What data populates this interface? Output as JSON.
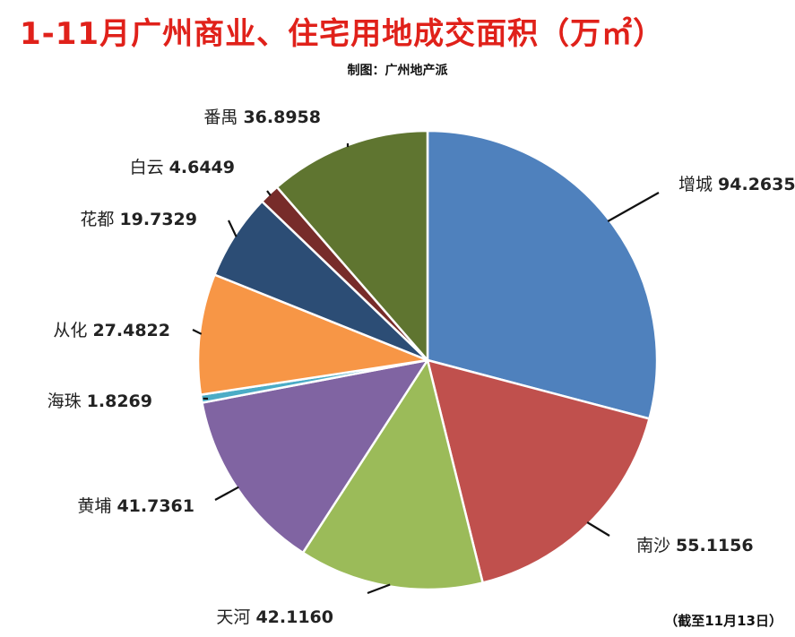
{
  "header": {
    "title": "1-11月广州商业、住宅用地成交面积（万㎡）",
    "credit": "制图：广州地产派"
  },
  "footer": {
    "note": "（截至11月13日）"
  },
  "chart_data": {
    "type": "pie",
    "title": "1-11月广州商业、住宅用地成交面积（万㎡）",
    "unit": "万㎡",
    "slices": [
      {
        "name": "增城",
        "value": 94.2635,
        "color": "#4f81bd"
      },
      {
        "name": "南沙",
        "value": 55.1156,
        "color": "#c0504d"
      },
      {
        "name": "天河",
        "value": 42.116,
        "color": "#9bbb59"
      },
      {
        "name": "黄埔",
        "value": 41.7361,
        "color": "#8064a2"
      },
      {
        "name": "海珠",
        "value": 1.8269,
        "color": "#4bacc6"
      },
      {
        "name": "从化",
        "value": 27.4822,
        "color": "#f79646"
      },
      {
        "name": "花都",
        "value": 19.7329,
        "color": "#2c4d75"
      },
      {
        "name": "白云",
        "value": 4.6449,
        "color": "#772c2a"
      },
      {
        "name": "番禺",
        "value": 36.8958,
        "color": "#5f7530"
      }
    ]
  }
}
